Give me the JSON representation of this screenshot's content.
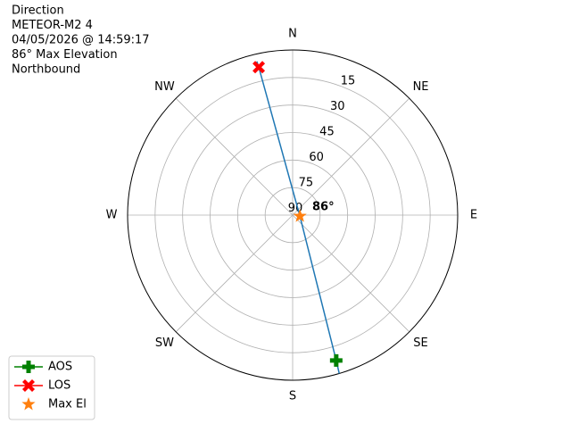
{
  "chart_data": {
    "type": "polar",
    "title_lines": [
      "Direction",
      "METEOR-M2 4",
      "04/05/2026 @ 14:59:17",
      "86° Max Elevation",
      "Northbound"
    ],
    "theta_ticks": [
      0,
      45,
      90,
      135,
      180,
      225,
      270,
      315
    ],
    "theta_labels": [
      "N",
      "NE",
      "E",
      "SE",
      "S",
      "SW",
      "W",
      "NW"
    ],
    "rlim": [
      90,
      0
    ],
    "rticks": [
      15,
      30,
      45,
      60,
      75,
      90
    ],
    "grid": true,
    "legend": "lower left",
    "annotation": "86°",
    "series": [
      {
        "name": null,
        "kind": "line",
        "color": "#1f77b4",
        "x": [
          163.6,
          163.3,
          98,
          347.1,
          346.9
        ],
        "values": [
          0,
          7.3,
          86,
          7.3,
          4
        ]
      },
      {
        "name": "AOS",
        "kind": "plus",
        "color": "green",
        "x": [
          163.3
        ],
        "values": [
          7.3
        ]
      },
      {
        "name": "LOS",
        "kind": "cross",
        "color": "red",
        "x": [
          347.1
        ],
        "values": [
          7.3
        ]
      },
      {
        "name": "Max El",
        "kind": "star",
        "color": "#ff7f0e",
        "x": [
          98
        ],
        "values": [
          86
        ]
      }
    ]
  }
}
